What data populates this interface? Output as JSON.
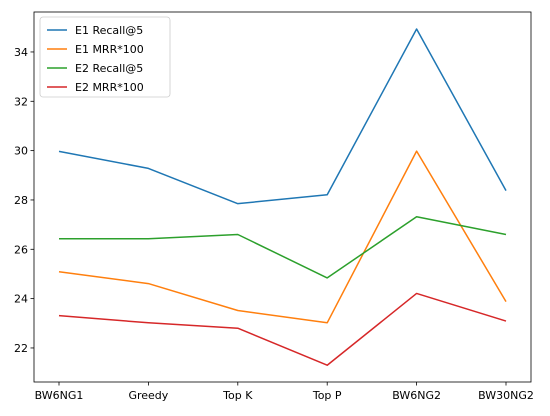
{
  "chart_data": {
    "type": "line",
    "categories": [
      "BW6NG1",
      "Greedy",
      "Top K",
      "Top P",
      "BW6NG2",
      "BW30NG2"
    ],
    "series": [
      {
        "name": "E1 Recall@5",
        "color": "#1f77b4",
        "values": [
          29.97,
          29.28,
          27.85,
          28.21,
          34.93,
          28.38
        ]
      },
      {
        "name": "E1 MRR*100",
        "color": "#ff7f0e",
        "values": [
          25.09,
          24.61,
          23.52,
          23.02,
          29.98,
          23.88
        ]
      },
      {
        "name": "E2 Recall@5",
        "color": "#2ca02c",
        "values": [
          26.43,
          26.43,
          26.6,
          24.84,
          27.32,
          26.6
        ]
      },
      {
        "name": "E2 MRR*100",
        "color": "#d62728",
        "values": [
          23.31,
          23.02,
          22.8,
          21.3,
          24.21,
          23.09
        ]
      }
    ],
    "yticks": [
      22,
      24,
      26,
      28,
      30,
      32,
      34
    ],
    "ylim": [
      20.62,
      35.62
    ],
    "legend": "top-left",
    "grid": false,
    "title": "",
    "xlabel": "",
    "ylabel": ""
  }
}
